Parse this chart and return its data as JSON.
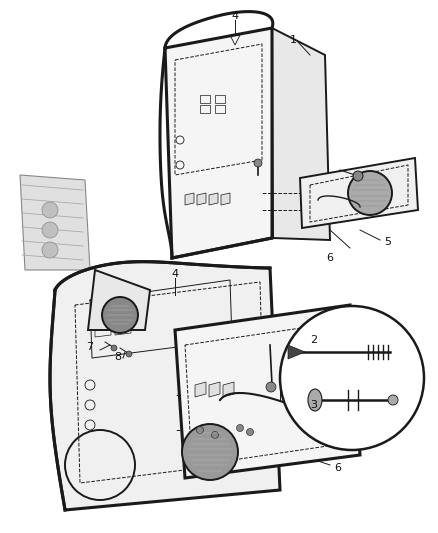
{
  "bg_color": "#ffffff",
  "fig_width": 4.38,
  "fig_height": 5.33,
  "dpi": 100,
  "line_color": "#1a1a1a",
  "label_color": "#111111",
  "label_fontsize": 8,
  "gray_line": "#777777",
  "light_gray": "#cccccc",
  "mid_gray": "#999999"
}
